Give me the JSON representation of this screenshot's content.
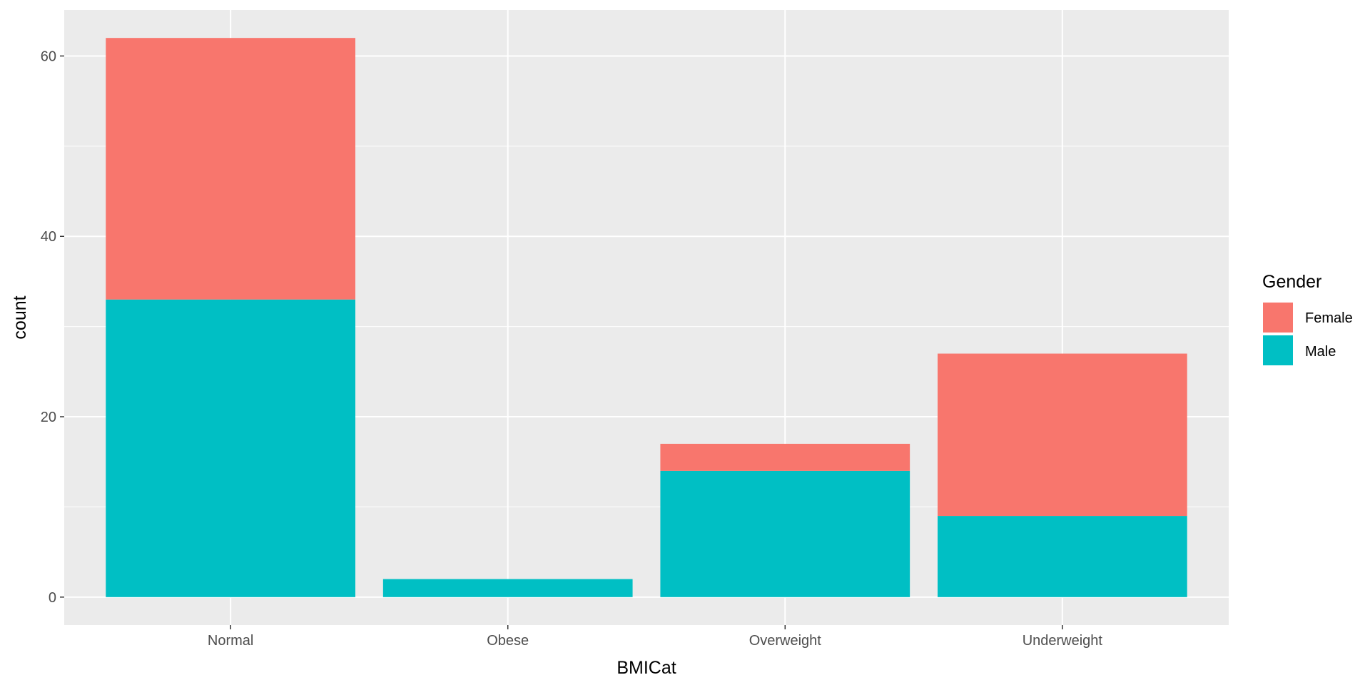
{
  "chart_data": {
    "type": "bar",
    "stacked": true,
    "categories": [
      "Normal",
      "Obese",
      "Overweight",
      "Underweight"
    ],
    "series": [
      {
        "name": "Female",
        "values": [
          29,
          0,
          3,
          18
        ],
        "color": "#F8766D"
      },
      {
        "name": "Male",
        "values": [
          33,
          2,
          14,
          9
        ],
        "color": "#00BFC4"
      }
    ],
    "xlabel": "BMICat",
    "ylabel": "count",
    "ylim": [
      -3.1,
      65.1
    ],
    "yticks": [
      0,
      20,
      40,
      60
    ],
    "yticks_minor": [
      10,
      30,
      50
    ],
    "grid": true,
    "legend": {
      "title": "Gender",
      "position": "right"
    },
    "colors": {
      "panel_background": "#EBEBEB",
      "grid": "#FFFFFF",
      "tick_text": "#4D4D4D",
      "tick_mark": "#333333"
    }
  }
}
